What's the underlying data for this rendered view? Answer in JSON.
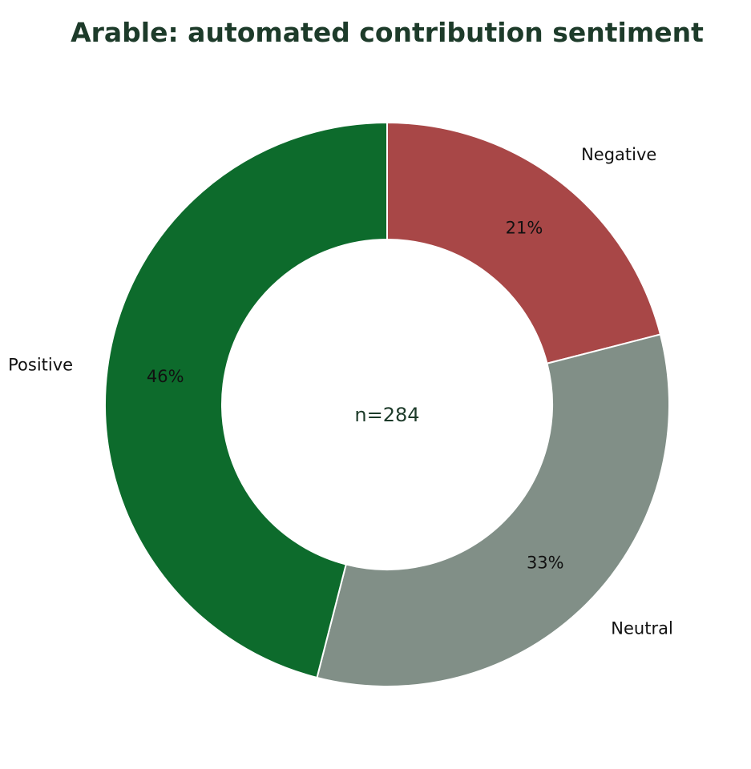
{
  "chart_data": {
    "type": "pie",
    "subtype": "donut",
    "title": "Arable: automated contribution sentiment",
    "center_text": "n=284",
    "start": "top",
    "direction": "clockwise",
    "slices": [
      {
        "label": "Negative",
        "value": 21,
        "pct_label": "21%",
        "color": "#a84747"
      },
      {
        "label": "Neutral",
        "value": 33,
        "pct_label": "33%",
        "color": "#818f87"
      },
      {
        "label": "Positive",
        "value": 46,
        "pct_label": "46%",
        "color": "#0d6b2c"
      }
    ]
  }
}
